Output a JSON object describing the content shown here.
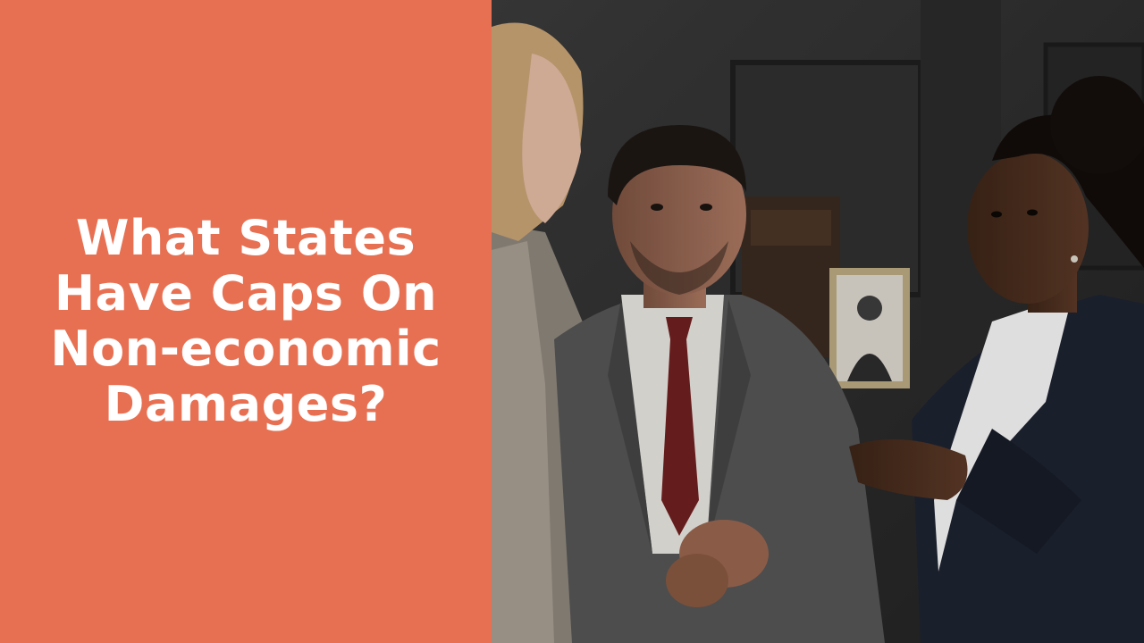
{
  "title": "What States Have Caps On Non-economic Damages?",
  "colors": {
    "panel": "#e87052",
    "title_text": "#ffffff"
  },
  "photo": {
    "alt": "Three people in business attire talking in a dark wood-paneled office"
  }
}
